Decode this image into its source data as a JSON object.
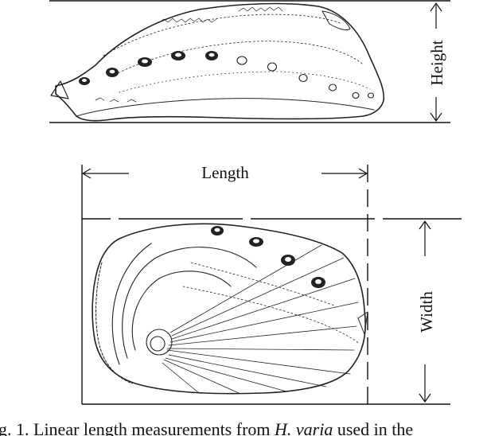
{
  "labels": {
    "height": "Height",
    "length": "Length",
    "width": "Width"
  },
  "caption": {
    "prefix": "g. 1. Linear length measurements from ",
    "species": "H. varia",
    "suffix": " used in the"
  },
  "colors": {
    "ink": "#111111",
    "paper": "#ffffff"
  }
}
